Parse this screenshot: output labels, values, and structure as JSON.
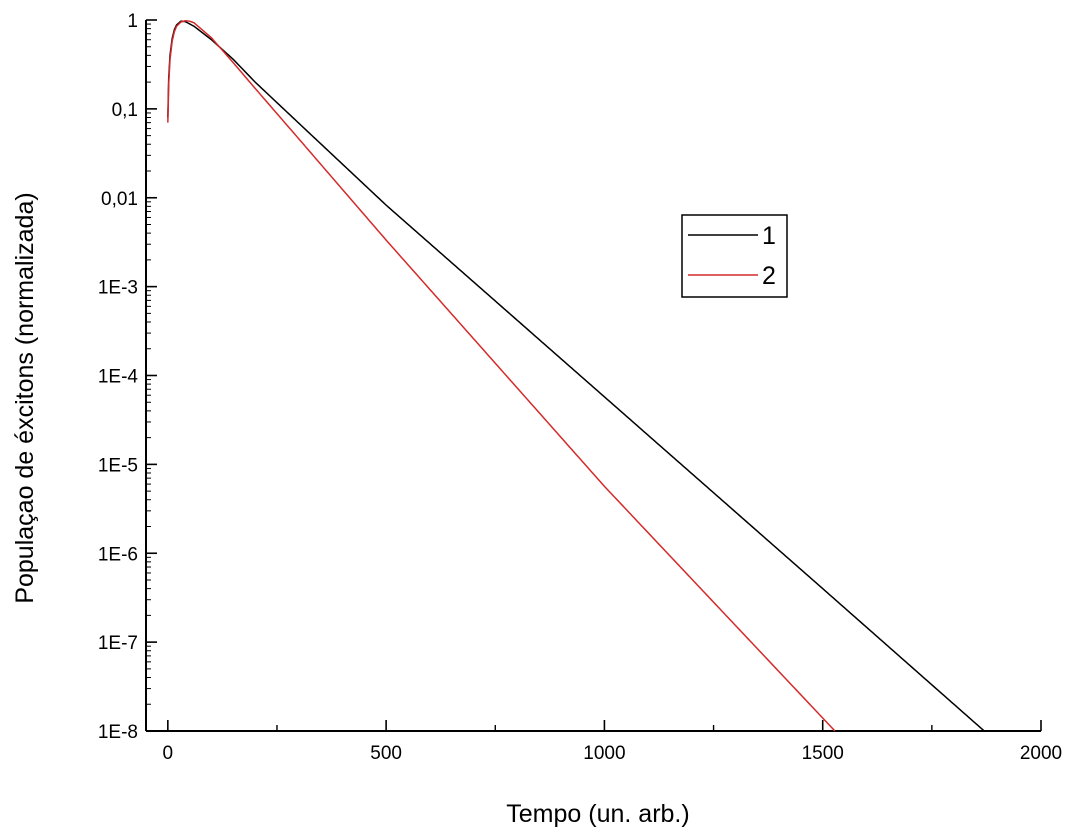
{
  "chart_data": {
    "type": "line",
    "title": "",
    "xlabel": "Tempo (un. arb.)",
    "ylabel": "Populaçao de éxcitons (normalizada)",
    "x_scale": "linear",
    "y_scale": "log",
    "xlim": [
      -50,
      2000
    ],
    "ylim": [
      1e-08,
      1
    ],
    "x_ticks": [
      {
        "value": 0,
        "label": "0"
      },
      {
        "value": 500,
        "label": "500"
      },
      {
        "value": 1000,
        "label": "1000"
      },
      {
        "value": 1500,
        "label": "1500"
      },
      {
        "value": 2000,
        "label": "2000"
      }
    ],
    "x_minor_ticks": [
      250,
      750,
      1250,
      1750
    ],
    "y_ticks": [
      {
        "value": 1,
        "label": "1"
      },
      {
        "value": 0.1,
        "label": "0,1"
      },
      {
        "value": 0.01,
        "label": "0,01"
      },
      {
        "value": 0.001,
        "label": "1E-3"
      },
      {
        "value": 0.0001,
        "label": "1E-4"
      },
      {
        "value": 1e-05,
        "label": "1E-5"
      },
      {
        "value": 1e-06,
        "label": "1E-6"
      },
      {
        "value": 1e-07,
        "label": "1E-7"
      },
      {
        "value": 1e-08,
        "label": "1E-8"
      }
    ],
    "grid": false,
    "legend": "center-right",
    "series": [
      {
        "name": "1",
        "color": "#000000",
        "x": [
          0,
          2,
          5,
          10,
          15,
          20,
          30,
          40,
          60,
          100,
          150,
          200,
          300,
          500,
          1000,
          1500,
          1870
        ],
        "y": [
          0.08,
          0.22,
          0.4,
          0.62,
          0.78,
          0.88,
          0.97,
          0.96,
          0.85,
          0.6,
          0.36,
          0.2,
          0.069,
          0.00826,
          5.75e-05,
          4e-07,
          1e-08
        ]
      },
      {
        "name": "2",
        "color": "#d42a2a",
        "x": [
          0,
          2,
          5,
          10,
          15,
          20,
          30,
          40,
          50,
          60,
          100,
          150,
          200,
          300,
          500,
          1000,
          1528
        ],
        "y": [
          0.07,
          0.19,
          0.36,
          0.58,
          0.74,
          0.85,
          0.95,
          0.98,
          0.97,
          0.93,
          0.63,
          0.33,
          0.17,
          0.046,
          0.00334,
          5.66e-06,
          1e-08
        ]
      }
    ]
  }
}
